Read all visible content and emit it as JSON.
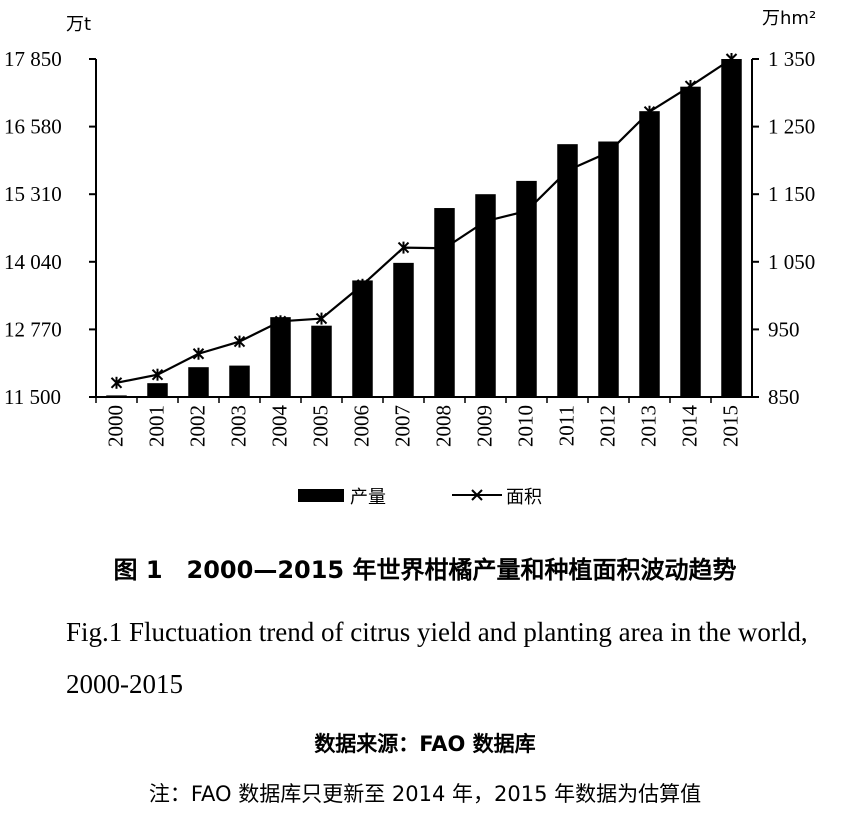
{
  "chart_data": {
    "type": "bar+line",
    "categories": [
      "2000",
      "2001",
      "2002",
      "2003",
      "2004",
      "2005",
      "2006",
      "2007",
      "2008",
      "2009",
      "2010",
      "2011",
      "2012",
      "2013",
      "2014",
      "2015"
    ],
    "series": [
      {
        "name": "产量",
        "axis": "left",
        "kind": "bar",
        "values": [
          11530,
          11760,
          12060,
          12090,
          13000,
          12840,
          13690,
          14020,
          15050,
          15310,
          15560,
          16250,
          16300,
          16870,
          17330,
          17850
        ]
      },
      {
        "name": "面积",
        "axis": "right",
        "kind": "line",
        "values": [
          871,
          883,
          914,
          932,
          962,
          966,
          1016,
          1071,
          1070,
          1110,
          1125,
          1185,
          1212,
          1272,
          1310,
          1350
        ]
      }
    ],
    "left_axis": {
      "unit": "万t",
      "ticks": [
        "17 850",
        "16 580",
        "15 310",
        "14 040",
        "12 770",
        "11 500"
      ],
      "ylim": [
        11500,
        17850
      ]
    },
    "right_axis": {
      "unit": "万hm²",
      "ticks": [
        "1 350",
        "1 250",
        "1 150",
        "1 050",
        "950",
        "850"
      ],
      "ylim": [
        850,
        1350
      ]
    },
    "legend": {
      "position": "bottom",
      "bar_label": "产量",
      "line_label": "面积"
    },
    "colors": {
      "bar": "#000000",
      "line": "#000000"
    }
  },
  "caption": {
    "cn": "图 1　2000—2015 年世界柑橘产量和种植面积波动趋势",
    "en": "Fig.1   Fluctuation trend of citrus yield and planting area in the world, 2000-2015",
    "source": "数据来源：FAO 数据库",
    "note": "注：FAO 数据库只更新至 2014 年，2015 年数据为估算值"
  }
}
